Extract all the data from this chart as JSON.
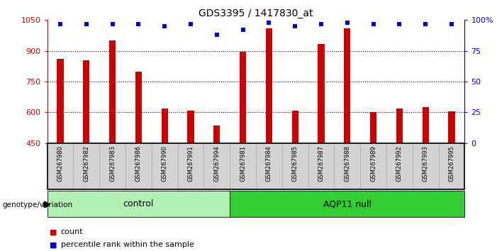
{
  "title": "GDS3395 / 1417830_at",
  "samples": [
    "GSM267980",
    "GSM267982",
    "GSM267983",
    "GSM267986",
    "GSM267990",
    "GSM267991",
    "GSM267994",
    "GSM267981",
    "GSM267984",
    "GSM267985",
    "GSM267987",
    "GSM267988",
    "GSM267989",
    "GSM267992",
    "GSM267993",
    "GSM267995"
  ],
  "counts": [
    860,
    855,
    950,
    800,
    620,
    610,
    535,
    895,
    1010,
    610,
    935,
    1010,
    600,
    620,
    625,
    605
  ],
  "percentile_ranks": [
    97,
    97,
    97,
    97,
    95,
    97,
    88,
    92,
    98,
    95,
    97,
    98,
    97,
    97,
    97,
    97
  ],
  "control_count": 7,
  "aqp11_count": 9,
  "ylim": [
    450,
    1050
  ],
  "yticks": [
    450,
    600,
    750,
    900,
    1050
  ],
  "y_right_ticks": [
    0,
    25,
    50,
    75,
    100
  ],
  "y_right_labels": [
    "0",
    "25",
    "50",
    "75",
    "100%"
  ],
  "bar_color": "#cc0000",
  "dot_color": "#0000cc",
  "bar_width": 0.25,
  "control_color": "#b3f0b3",
  "aqp11_color": "#33cc33",
  "tick_bg_color": "#d3d3d3",
  "genotype_label": "genotype/variation",
  "legend_count_label": "count",
  "legend_pct_label": "percentile rank within the sample",
  "left_color": "#cc0000",
  "right_color": "#0000cc"
}
